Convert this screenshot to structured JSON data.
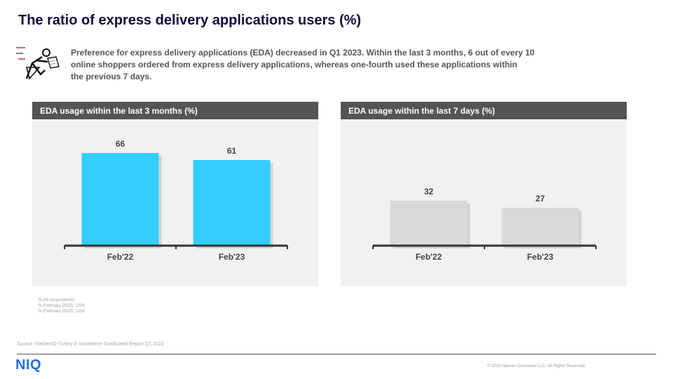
{
  "title": "The ratio of express delivery applications users (%)",
  "intro_lines": [
    "Preference for express delivery applications (EDA) decreased in Q1 2023. Within the last 3 months, 6 out of every 10",
    "online shoppers ordered from express delivery applications, whereas one-fourth used these applications within",
    "the  previous 7 days."
  ],
  "icon": "courier-runner-icon",
  "chart_data": [
    {
      "type": "bar",
      "title": "EDA usage within the last 3 months (%)",
      "categories": [
        "Feb'22",
        "Feb'23"
      ],
      "values": [
        66,
        61
      ],
      "ylim": [
        0,
        100
      ],
      "color": "#33ceff",
      "grid": false
    },
    {
      "type": "bar",
      "title": "EDA usage within the last 7 days (%)",
      "categories": [
        "Feb'22",
        "Feb'23"
      ],
      "values": [
        32,
        27
      ],
      "ylim": [
        0,
        100
      ],
      "color": "#d9d9d9",
      "grid": false
    }
  ],
  "footnote_lines": [
    "N (All respondents)",
    "N (February 2022): 1206",
    "N (February 2023): 1218"
  ],
  "source": "Source: NielsenIQ Turkey E-commerce Syndicated Report Q1 2023",
  "logo_text": "NIQ",
  "copyright": "© 2023 Nielsen Consumer LLC. All Rights Reserved."
}
